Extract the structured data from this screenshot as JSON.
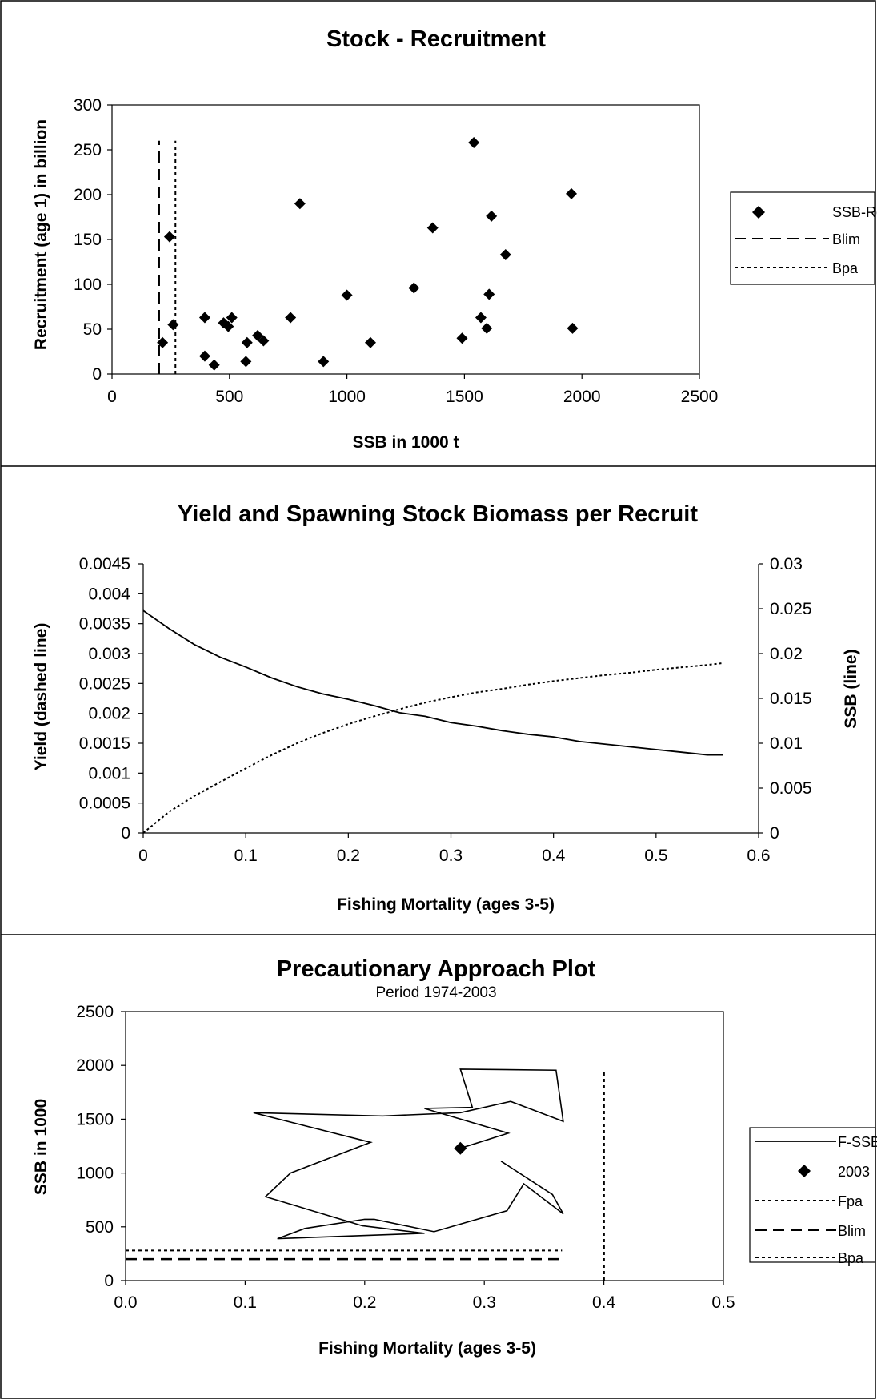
{
  "chart_data": [
    {
      "type": "scatter",
      "title": "Stock - Recruitment",
      "xlabel": "SSB in 1000 t",
      "ylabel": "Recruitment (age 1) in billion",
      "xlim": [
        0,
        2500
      ],
      "ylim": [
        0,
        300
      ],
      "xticks": [
        "0",
        "500",
        "1000",
        "1500",
        "2000",
        "2500"
      ],
      "yticks": [
        "0",
        "50",
        "100",
        "150",
        "200",
        "250",
        "300"
      ],
      "legend": {
        "position": "right",
        "entries": [
          "SSB-Rec.",
          "Blim",
          "Bpa"
        ]
      },
      "series": [
        {
          "name": "SSB-Rec.",
          "points": [
            [
              215,
              35
            ],
            [
              245,
              153
            ],
            [
              260,
              55
            ],
            [
              395,
              63
            ],
            [
              395,
              20
            ],
            [
              435,
              10
            ],
            [
              475,
              57
            ],
            [
              495,
              53
            ],
            [
              510,
              63
            ],
            [
              570,
              14
            ],
            [
              575,
              35
            ],
            [
              620,
              43
            ],
            [
              645,
              37
            ],
            [
              760,
              63
            ],
            [
              800,
              190
            ],
            [
              900,
              14
            ],
            [
              1000,
              88
            ],
            [
              1100,
              35
            ],
            [
              1285,
              96
            ],
            [
              1365,
              163
            ],
            [
              1490,
              40
            ],
            [
              1540,
              258
            ],
            [
              1570,
              63
            ],
            [
              1595,
              51
            ],
            [
              1605,
              89
            ],
            [
              1615,
              176
            ],
            [
              1675,
              133
            ],
            [
              1955,
              201
            ],
            [
              1960,
              51
            ]
          ]
        },
        {
          "name": "Blim",
          "x": 200,
          "y_range": [
            0,
            260
          ]
        },
        {
          "name": "Bpa",
          "x": 270,
          "y_range": [
            0,
            260
          ]
        }
      ]
    },
    {
      "type": "line",
      "title": "Yield and Spawning Stock Biomass per Recruit",
      "xlabel": "Fishing Mortality (ages 3-5)",
      "ylabel": "Yield (dashed line)",
      "y2label": "SSB (line)",
      "xlim": [
        0,
        0.6
      ],
      "ylim": [
        0,
        0.0045
      ],
      "y2lim": [
        0,
        0.03
      ],
      "xticks": [
        "0",
        "0.1",
        "0.2",
        "0.3",
        "0.4",
        "0.5",
        "0.6"
      ],
      "yticks": [
        "0",
        "0.0005",
        "0.001",
        "0.0015",
        "0.002",
        "0.0025",
        "0.003",
        "0.0035",
        "0.004",
        "0.0045"
      ],
      "y2ticks": [
        "0",
        "0.005",
        "0.01",
        "0.015",
        "0.02",
        "0.025",
        "0.03"
      ],
      "series": [
        {
          "name": "Yield",
          "axis": "left",
          "points": [
            [
              0.0,
              0.0
            ],
            [
              0.025,
              0.00035
            ],
            [
              0.05,
              0.00062
            ],
            [
              0.075,
              0.00085
            ],
            [
              0.1,
              0.00108
            ],
            [
              0.125,
              0.0013
            ],
            [
              0.15,
              0.0015
            ],
            [
              0.175,
              0.00167
            ],
            [
              0.2,
              0.00182
            ],
            [
              0.225,
              0.00195
            ],
            [
              0.25,
              0.00207
            ],
            [
              0.275,
              0.00218
            ],
            [
              0.3,
              0.00227
            ],
            [
              0.325,
              0.00235
            ],
            [
              0.35,
              0.00241
            ],
            [
              0.375,
              0.00248
            ],
            [
              0.4,
              0.00254
            ],
            [
              0.425,
              0.00259
            ],
            [
              0.45,
              0.00264
            ],
            [
              0.475,
              0.00268
            ],
            [
              0.5,
              0.00273
            ],
            [
              0.525,
              0.00277
            ],
            [
              0.55,
              0.00281
            ],
            [
              0.565,
              0.00284
            ]
          ]
        },
        {
          "name": "SSB",
          "axis": "right",
          "points": [
            [
              0.0,
              0.0248
            ],
            [
              0.025,
              0.0228
            ],
            [
              0.05,
              0.021
            ],
            [
              0.075,
              0.0196
            ],
            [
              0.1,
              0.0185
            ],
            [
              0.125,
              0.0173
            ],
            [
              0.15,
              0.0163
            ],
            [
              0.175,
              0.0155
            ],
            [
              0.2,
              0.0149
            ],
            [
              0.225,
              0.0142
            ],
            [
              0.25,
              0.0134
            ],
            [
              0.275,
              0.013
            ],
            [
              0.3,
              0.0123
            ],
            [
              0.325,
              0.0119
            ],
            [
              0.35,
              0.0114
            ],
            [
              0.375,
              0.011
            ],
            [
              0.4,
              0.0107
            ],
            [
              0.425,
              0.0102
            ],
            [
              0.45,
              0.0099
            ],
            [
              0.475,
              0.0096
            ],
            [
              0.5,
              0.0093
            ],
            [
              0.525,
              0.009
            ],
            [
              0.55,
              0.0087
            ],
            [
              0.565,
              0.0087
            ]
          ]
        }
      ]
    },
    {
      "type": "line",
      "title": "Precautionary Approach Plot",
      "subtitle": "Period 1974-2003",
      "xlabel": "Fishing Mortality (ages 3-5)",
      "ylabel": "SSB in 1000",
      "xlim": [
        0,
        0.5
      ],
      "ylim": [
        0,
        2500
      ],
      "xticks": [
        "0.0",
        "0.1",
        "0.2",
        "0.3",
        "0.4",
        "0.5"
      ],
      "yticks": [
        "0",
        "500",
        "1000",
        "1500",
        "2000",
        "2500"
      ],
      "legend": {
        "position": "right",
        "entries": [
          "F-SSB",
          "2003",
          "Fpa",
          "Blim",
          "Bpa"
        ]
      },
      "series": [
        {
          "name": "F-SSB",
          "points": [
            [
              0.314,
              1110
            ],
            [
              0.357,
              800
            ],
            [
              0.366,
              620
            ],
            [
              0.333,
              900
            ],
            [
              0.319,
              650
            ],
            [
              0.258,
              455
            ],
            [
              0.208,
              570
            ],
            [
              0.2,
              570
            ],
            [
              0.15,
              485
            ],
            [
              0.127,
              390
            ],
            [
              0.25,
              440
            ],
            [
              0.198,
              510
            ],
            [
              0.117,
              780
            ],
            [
              0.138,
              1000
            ],
            [
              0.205,
              1285
            ],
            [
              0.107,
              1560
            ],
            [
              0.215,
              1530
            ],
            [
              0.28,
              1560
            ],
            [
              0.322,
              1665
            ],
            [
              0.366,
              1480
            ],
            [
              0.36,
              1955
            ],
            [
              0.28,
              1965
            ],
            [
              0.29,
              1610
            ],
            [
              0.25,
              1600
            ],
            [
              0.32,
              1370
            ],
            [
              0.28,
              1230
            ]
          ]
        },
        {
          "name": "2003",
          "points": [
            [
              0.28,
              1230
            ]
          ]
        },
        {
          "name": "Fpa",
          "x": 0.4,
          "y_range": [
            0,
            1950
          ]
        },
        {
          "name": "Blim",
          "y": 200,
          "x_range": [
            0,
            0.365
          ]
        },
        {
          "name": "Bpa",
          "y": 280,
          "x_range": [
            0,
            0.365
          ]
        }
      ]
    }
  ]
}
